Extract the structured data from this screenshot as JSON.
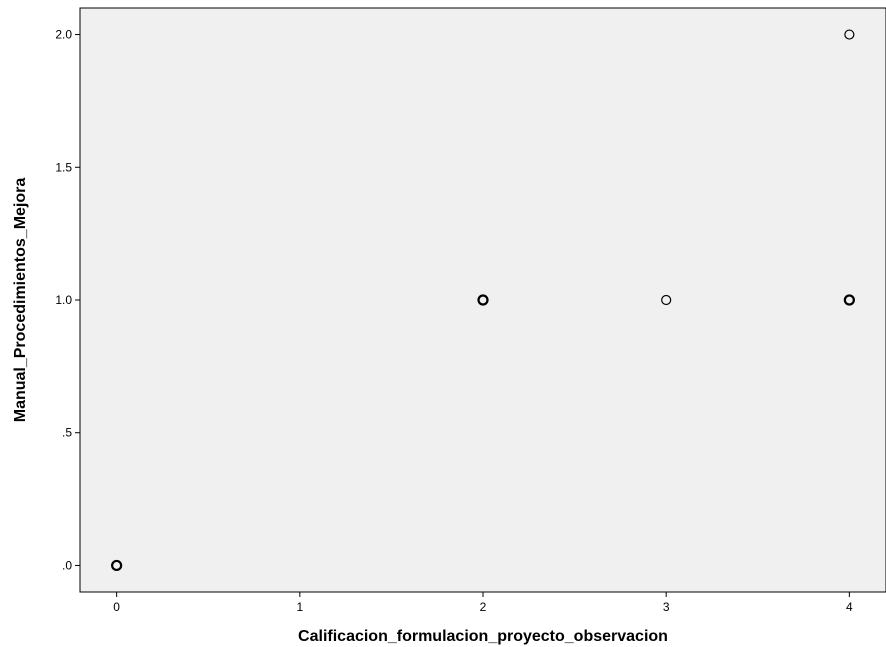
{
  "chart_data": {
    "type": "scatter",
    "title": "",
    "xlabel": "Calificacion_formulacion_proyecto_observacion",
    "ylabel": "Manual_Procedimientos_Mejora",
    "xlim": [
      -0.2,
      4.2
    ],
    "ylim": [
      -0.1,
      2.1
    ],
    "x_ticks": [
      0,
      1,
      2,
      3,
      4
    ],
    "x_tick_labels": [
      "0",
      "1",
      "2",
      "3",
      "4"
    ],
    "y_ticks": [
      0,
      0.5,
      1,
      1.5,
      2
    ],
    "y_tick_labels": [
      ".0",
      ".5",
      "1.0",
      "1.5",
      "2.0"
    ],
    "grid": false,
    "legend": "none",
    "plot_background": "#f0f0f0",
    "marker_fill": "#f0f0f0",
    "marker_edge": "#000000",
    "points": [
      {
        "x": 0,
        "y": 0,
        "overlap": true
      },
      {
        "x": 2,
        "y": 1,
        "overlap": true
      },
      {
        "x": 3,
        "y": 1,
        "overlap": false
      },
      {
        "x": 4,
        "y": 1,
        "overlap": true
      },
      {
        "x": 4,
        "y": 2,
        "overlap": false
      }
    ]
  }
}
